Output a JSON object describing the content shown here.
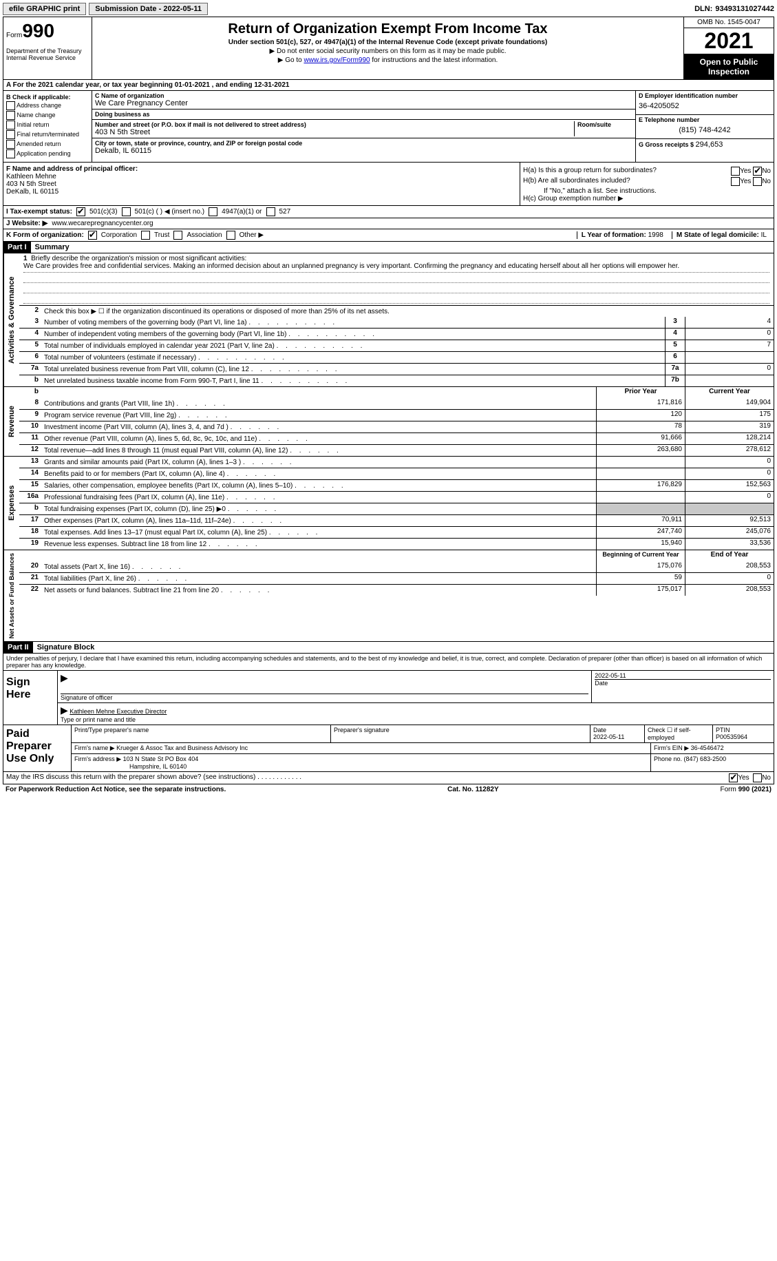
{
  "topbar": {
    "efile": "efile GRAPHIC print",
    "submission_label": "Submission Date - ",
    "submission_date": "2022-05-11",
    "dln_label": "DLN: ",
    "dln": "93493131027442"
  },
  "header": {
    "form_word": "Form",
    "form_num": "990",
    "dept": "Department of the Treasury\nInternal Revenue Service",
    "title": "Return of Organization Exempt From Income Tax",
    "subtitle": "Under section 501(c), 527, or 4947(a)(1) of the Internal Revenue Code (except private foundations)",
    "note1": "▶ Do not enter social security numbers on this form as it may be made public.",
    "note2_pre": "▶ Go to ",
    "note2_link": "www.irs.gov/Form990",
    "note2_post": " for instructions and the latest information.",
    "omb": "OMB No. 1545-0047",
    "year": "2021",
    "open": "Open to Public Inspection"
  },
  "rowA": {
    "text_pre": "A For the 2021 calendar year, or tax year beginning ",
    "begin": "01-01-2021",
    "mid": "   , and ending ",
    "end": "12-31-2021"
  },
  "colB": {
    "label": "B Check if applicable:",
    "items": [
      "Address change",
      "Name change",
      "Initial return",
      "Final return/terminated",
      "Amended return",
      "Application pending"
    ]
  },
  "colC": {
    "name_lbl": "C Name of organization",
    "name": "We Care Pregnancy Center",
    "dba_lbl": "Doing business as",
    "dba": "",
    "street_lbl": "Number and street (or P.O. box if mail is not delivered to street address)",
    "room_lbl": "Room/suite",
    "street": "403 N 5th Street",
    "city_lbl": "City or town, state or province, country, and ZIP or foreign postal code",
    "city": "Dekalb, IL  60115"
  },
  "colD": {
    "ein_lbl": "D Employer identification number",
    "ein": "36-4205052",
    "tel_lbl": "E Telephone number",
    "tel": "(815) 748-4242",
    "gross_lbl": "G Gross receipts $ ",
    "gross": "294,653"
  },
  "rowF": {
    "lbl": "F  Name and address of principal officer:",
    "name": "Kathleen Mehne",
    "addr1": "403 N 5th Street",
    "addr2": "DeKalb, IL  60115"
  },
  "rowH": {
    "ha": "H(a)  Is this a group return for subordinates?",
    "hb": "H(b)  Are all subordinates included?",
    "hb_note": "If \"No,\" attach a list. See instructions.",
    "hc": "H(c)  Group exemption number ▶",
    "yes": "Yes",
    "no": "No"
  },
  "rowI": {
    "lbl": "I  Tax-exempt status:",
    "o1": "501(c)(3)",
    "o2": "501(c) (  ) ◀ (insert no.)",
    "o3": "4947(a)(1) or",
    "o4": "527"
  },
  "rowJ": {
    "lbl": "J  Website: ▶",
    "val": "  www.wecarepregnancycenter.org"
  },
  "rowK": {
    "lbl": "K Form of organization:",
    "o1": "Corporation",
    "o2": "Trust",
    "o3": "Association",
    "o4": "Other ▶",
    "l_lbl": "L Year of formation: ",
    "l_val": "1998",
    "m_lbl": "M State of legal domicile: ",
    "m_val": "IL"
  },
  "part1": {
    "hdr": "Part I",
    "title": "Summary"
  },
  "summary": {
    "q1_lbl": "Briefly describe the organization's mission or most significant activities:",
    "q1_val": "We Care provides free and confidential services. Making an informed decision about an unplanned pregnancy is very important. Confirming the pregnancy and educating herself about all her options will empower her.",
    "q2": "Check this box ▶ ☐  if the organization discontinued its operations or disposed of more than 25% of its net assets.",
    "rows_ag": [
      {
        "n": "3",
        "d": "Number of voting members of the governing body (Part VI, line 1a)",
        "box": "3",
        "v": "4"
      },
      {
        "n": "4",
        "d": "Number of independent voting members of the governing body (Part VI, line 1b)",
        "box": "4",
        "v": "0"
      },
      {
        "n": "5",
        "d": "Total number of individuals employed in calendar year 2021 (Part V, line 2a)",
        "box": "5",
        "v": "7"
      },
      {
        "n": "6",
        "d": "Total number of volunteers (estimate if necessary)",
        "box": "6",
        "v": ""
      },
      {
        "n": "7a",
        "d": "Total unrelated business revenue from Part VIII, column (C), line 12",
        "box": "7a",
        "v": "0"
      },
      {
        "n": "b",
        "d": "Net unrelated business taxable income from Form 990-T, Part I, line 11",
        "box": "7b",
        "v": ""
      }
    ],
    "py_hdr": "Prior Year",
    "cy_hdr": "Current Year",
    "rows_rev": [
      {
        "n": "8",
        "d": "Contributions and grants (Part VIII, line 1h)",
        "py": "171,816",
        "cy": "149,904"
      },
      {
        "n": "9",
        "d": "Program service revenue (Part VIII, line 2g)",
        "py": "120",
        "cy": "175"
      },
      {
        "n": "10",
        "d": "Investment income (Part VIII, column (A), lines 3, 4, and 7d )",
        "py": "78",
        "cy": "319"
      },
      {
        "n": "11",
        "d": "Other revenue (Part VIII, column (A), lines 5, 6d, 8c, 9c, 10c, and 11e)",
        "py": "91,666",
        "cy": "128,214"
      },
      {
        "n": "12",
        "d": "Total revenue—add lines 8 through 11 (must equal Part VIII, column (A), line 12)",
        "py": "263,680",
        "cy": "278,612"
      }
    ],
    "rows_exp": [
      {
        "n": "13",
        "d": "Grants and similar amounts paid (Part IX, column (A), lines 1–3 )",
        "py": "",
        "cy": "0"
      },
      {
        "n": "14",
        "d": "Benefits paid to or for members (Part IX, column (A), line 4)",
        "py": "",
        "cy": "0"
      },
      {
        "n": "15",
        "d": "Salaries, other compensation, employee benefits (Part IX, column (A), lines 5–10)",
        "py": "176,829",
        "cy": "152,563"
      },
      {
        "n": "16a",
        "d": "Professional fundraising fees (Part IX, column (A), line 11e)",
        "py": "",
        "cy": "0"
      },
      {
        "n": "b",
        "d": "Total fundraising expenses (Part IX, column (D), line 25) ▶0",
        "py": "SHADE",
        "cy": "SHADE"
      },
      {
        "n": "17",
        "d": "Other expenses (Part IX, column (A), lines 11a–11d, 11f–24e)",
        "py": "70,911",
        "cy": "92,513"
      },
      {
        "n": "18",
        "d": "Total expenses. Add lines 13–17 (must equal Part IX, column (A), line 25)",
        "py": "247,740",
        "cy": "245,076"
      },
      {
        "n": "19",
        "d": "Revenue less expenses. Subtract line 18 from line 12",
        "py": "15,940",
        "cy": "33,536"
      }
    ],
    "boy_hdr": "Beginning of Current Year",
    "eoy_hdr": "End of Year",
    "rows_na": [
      {
        "n": "20",
        "d": "Total assets (Part X, line 16)",
        "py": "175,076",
        "cy": "208,553"
      },
      {
        "n": "21",
        "d": "Total liabilities (Part X, line 26)",
        "py": "59",
        "cy": "0"
      },
      {
        "n": "22",
        "d": "Net assets or fund balances. Subtract line 21 from line 20",
        "py": "175,017",
        "cy": "208,553"
      }
    ],
    "vtab_ag": "Activities & Governance",
    "vtab_rev": "Revenue",
    "vtab_exp": "Expenses",
    "vtab_na": "Net Assets or Fund Balances"
  },
  "part2": {
    "hdr": "Part II",
    "title": "Signature Block"
  },
  "sig": {
    "declaration": "Under penalties of perjury, I declare that I have examined this return, including accompanying schedules and statements, and to the best of my knowledge and belief, it is true, correct, and complete. Declaration of preparer (other than officer) is based on all information of which preparer has any knowledge.",
    "sign_here": "Sign Here",
    "sig_officer": "Signature of officer",
    "sig_date": "2022-05-11",
    "date_lbl": "Date",
    "name_title": "Kathleen Mehne  Executive Director",
    "name_title_lbl": "Type or print name and title"
  },
  "paid": {
    "label": "Paid Preparer Use Only",
    "h1": "Print/Type preparer's name",
    "h2": "Preparer's signature",
    "h3_lbl": "Date",
    "h3": "2022-05-11",
    "h4": "Check ☐ if self-employed",
    "h5_lbl": "PTIN",
    "h5": "P00535964",
    "firm_name_lbl": "Firm's name      ▶ ",
    "firm_name": "Krueger & Assoc Tax and Business Advisory Inc",
    "firm_ein_lbl": "Firm's EIN ▶ ",
    "firm_ein": "36-4546472",
    "firm_addr_lbl": "Firm's address ▶ ",
    "firm_addr1": "103 N State St PO Box 404",
    "firm_addr2": "Hampshire, IL  60140",
    "phone_lbl": "Phone no. ",
    "phone": "(847) 683-2500"
  },
  "footer": {
    "discuss": "May the IRS discuss this return with the preparer shown above? (see instructions)",
    "yes": "Yes",
    "no": "No",
    "paperwork": "For Paperwork Reduction Act Notice, see the separate instructions.",
    "cat": "Cat. No. 11282Y",
    "form": "Form 990 (2021)"
  }
}
